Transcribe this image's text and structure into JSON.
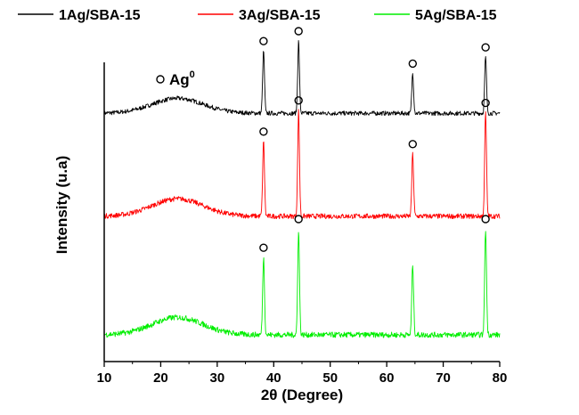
{
  "chart_data": {
    "type": "line",
    "title": "",
    "xlabel": "2θ (Degree)",
    "ylabel": "Intensity (u.a)",
    "xlim": [
      10,
      80
    ],
    "x_ticks": [
      10,
      20,
      30,
      40,
      50,
      60,
      70,
      80
    ],
    "y_ticks_shown": false,
    "grid": false,
    "legend_position": "top",
    "annotation": {
      "symbol": "o",
      "text": "Ag",
      "superscript": "0"
    },
    "series": [
      {
        "name": "1Ag/SBA-15",
        "color": "#000000",
        "offset": 2.0,
        "baseline": 0.02,
        "hump": {
          "center": 23,
          "width": 4.5,
          "height": 0.12
        },
        "noise": 0.035,
        "peaks": [
          {
            "x": 38.2,
            "height": 0.5,
            "marked": true
          },
          {
            "x": 44.4,
            "height": 0.58,
            "marked": true
          },
          {
            "x": 64.6,
            "height": 0.32,
            "marked": true
          },
          {
            "x": 77.5,
            "height": 0.45,
            "marked": true
          }
        ]
      },
      {
        "name": "3Ag/SBA-15",
        "color": "#ff0000",
        "offset": 1.0,
        "baseline": 0.03,
        "hump": {
          "center": 23,
          "width": 4.5,
          "height": 0.14
        },
        "noise": 0.04,
        "peaks": [
          {
            "x": 38.2,
            "height": 0.6,
            "marked": true
          },
          {
            "x": 44.4,
            "height": 0.85,
            "marked": true
          },
          {
            "x": 64.6,
            "height": 0.5,
            "marked": true
          },
          {
            "x": 77.5,
            "height": 0.83,
            "marked": true
          }
        ]
      },
      {
        "name": "5Ag/SBA-15",
        "color": "#00ee00",
        "offset": 0.0,
        "baseline": 0.05,
        "hump": {
          "center": 23,
          "width": 4.5,
          "height": 0.14
        },
        "noise": 0.045,
        "peaks": [
          {
            "x": 38.2,
            "height": 0.62,
            "marked": true
          },
          {
            "x": 44.4,
            "height": 0.85,
            "marked": true
          },
          {
            "x": 64.6,
            "height": 0.56,
            "marked": false
          },
          {
            "x": 77.5,
            "height": 0.85,
            "marked": true
          }
        ]
      }
    ]
  }
}
